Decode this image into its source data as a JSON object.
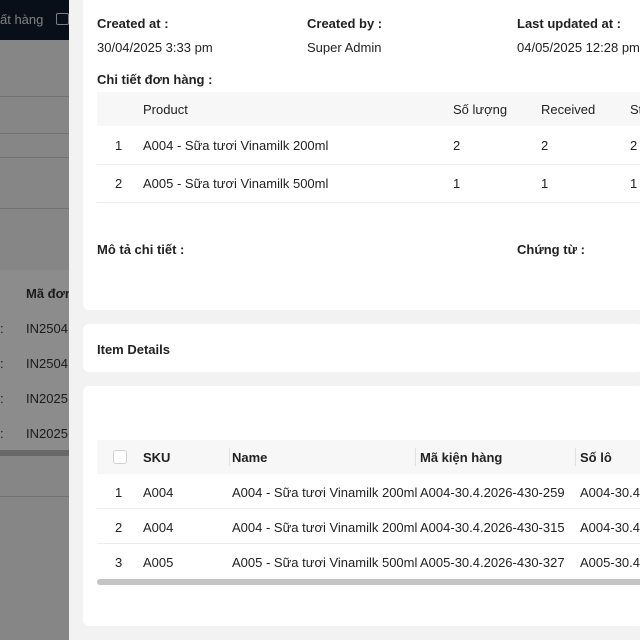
{
  "background": {
    "nav_text": "ất hàng",
    "table_header": "Mã đơn",
    "rows": [
      "IN2504",
      "IN2504",
      "IN2025",
      "IN2025"
    ],
    "row_marks": [
      ":",
      ":",
      ":",
      ":"
    ]
  },
  "order_info": {
    "created_at_label": "Created at :",
    "created_at_value": "30/04/2025 3:33 pm",
    "created_by_label": "Created by :",
    "created_by_value": "Super Admin",
    "updated_label": "Last updated at :",
    "updated_value": "04/05/2025 12:28 pm"
  },
  "order_details": {
    "title": "Chi tiết đơn hàng :",
    "columns": [
      "Product",
      "Số lượng",
      "Received",
      "St"
    ],
    "rows": [
      {
        "no": "1",
        "product": "A004 - Sữa tươi Vinamilk 200ml",
        "qty": "2",
        "received": "2",
        "st": "2"
      },
      {
        "no": "2",
        "product": "A005 - Sữa tươi Vinamilk 500ml",
        "qty": "1",
        "received": "1",
        "st": "1"
      }
    ]
  },
  "description": {
    "detail_label": "Mô tả chi tiết :",
    "docs_label": "Chứng từ :"
  },
  "item_details": {
    "title": "Item Details",
    "columns": [
      "SKU",
      "Name",
      "Mã kiện hàng",
      "Số lô"
    ],
    "rows": [
      {
        "no": "1",
        "sku": "A004",
        "name": "A004 - Sữa tươi Vinamilk 200ml",
        "package": "A004-30.4.2026-430-259",
        "lot": "A004-30.4"
      },
      {
        "no": "2",
        "sku": "A004",
        "name": "A004 - Sữa tươi Vinamilk 200ml",
        "package": "A004-30.4.2026-430-315",
        "lot": "A004-30.4"
      },
      {
        "no": "3",
        "sku": "A005",
        "name": "A005 - Sữa tươi Vinamilk 500ml",
        "package": "A005-30.4.2026-430-327",
        "lot": "A005-30.4"
      }
    ]
  }
}
